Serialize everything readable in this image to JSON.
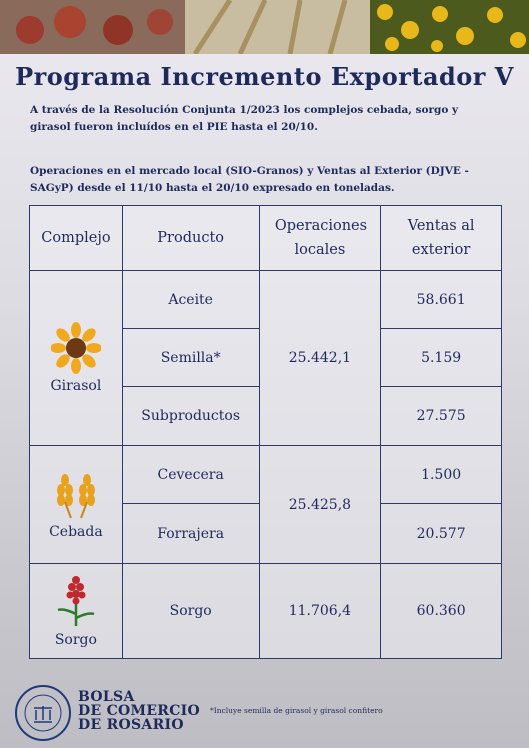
{
  "header": {
    "title": "Programa Incremento Exportador V",
    "intro": "A través de la Resolución Conjunta 1/2023 los complejos cebada, sorgo y girasol fueron incluídos en el PIE  hasta el 20/10.",
    "subtitle": "Operaciones en el mercado local (SIO-Granos) y Ventas al Exterior (DJVE -SAGyP) desde el 11/10 hasta el 20/10 expresado en toneladas."
  },
  "table": {
    "columns": [
      "Complejo",
      "Producto",
      "Operaciones locales",
      "Ventas al exterior"
    ],
    "groups": [
      {
        "complejo": "Girasol",
        "operaciones": "25.442,1",
        "rows": [
          {
            "producto": "Aceite",
            "ventas": "58.661"
          },
          {
            "producto": "Semilla*",
            "ventas": "5.159"
          },
          {
            "producto": "Subproductos",
            "ventas": "27.575"
          }
        ]
      },
      {
        "complejo": "Cebada",
        "operaciones": "25.425,8",
        "rows": [
          {
            "producto": "Cevecera",
            "ventas": "1.500"
          },
          {
            "producto": "Forrajera",
            "ventas": "20.577"
          }
        ]
      },
      {
        "complejo": "Sorgo",
        "operaciones": "11.706,4",
        "rows": [
          {
            "producto": "Sorgo",
            "ventas": "60.360"
          }
        ]
      }
    ]
  },
  "footer": {
    "logo_lines": [
      "BOLSA",
      "DE COMERCIO",
      "DE ROSARIO"
    ],
    "footnote": "*Incluye semilla de girasol y girasol confitero"
  }
}
